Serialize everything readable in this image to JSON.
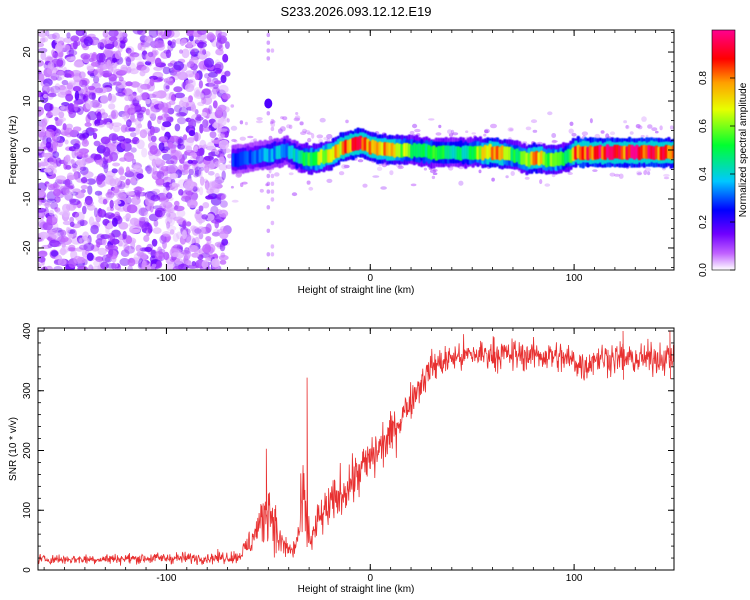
{
  "page": {
    "title": "S233.2026.093.12.12.E19"
  },
  "chart_data": [
    {
      "type": "heatmap",
      "title": "S233.2026.093.12.12.E19",
      "xlabel": "Height of straight line (km)",
      "ylabel": "Frequency (Hz)",
      "xlim": [
        -163,
        149
      ],
      "ylim": [
        -24.5,
        24.5
      ],
      "x_ticks": [
        -100,
        0,
        100
      ],
      "x_tick_labels": [
        "-100",
        "0",
        "100"
      ],
      "y_ticks": [
        -20,
        -10,
        0,
        10,
        20
      ],
      "y_tick_labels": [
        "-20",
        "-10",
        "0",
        "10",
        "20"
      ],
      "colorbar": {
        "label": "Normalized spectral amplitude",
        "range": [
          0,
          1
        ],
        "ticks": [
          0.0,
          0.2,
          0.4,
          0.6,
          0.8
        ],
        "tick_labels": [
          "0.0",
          "0.2",
          "0.4",
          "0.6",
          "0.8"
        ],
        "colors": [
          "#ffffff",
          "#b000ff",
          "#3000ff",
          "#00c8ff",
          "#00ff40",
          "#e8ff00",
          "#ffa000",
          "#ff0000",
          "#ff00a0"
        ]
      },
      "noise_region_x": [
        -163,
        -70
      ],
      "ridge": {
        "x": [
          -68,
          -60,
          -50,
          -42,
          -36,
          -30,
          -25,
          -20,
          -15,
          -10,
          -5,
          0,
          10,
          20,
          30,
          40,
          50,
          60,
          70,
          76,
          80,
          85,
          90,
          96,
          100,
          110,
          120,
          130,
          140,
          149
        ],
        "freq_hz": [
          -2,
          -1.5,
          -1,
          0,
          -1.5,
          -2,
          -1.5,
          -1,
          0.5,
          1,
          1.5,
          0.5,
          0,
          0,
          -0.5,
          -0.5,
          -0.5,
          -0.5,
          -1,
          -2,
          -1.5,
          -2,
          -2,
          -1.5,
          -0.5,
          -0.5,
          -0.5,
          -0.5,
          -0.5,
          -0.5
        ],
        "amplitude": [
          0.3,
          0.3,
          0.35,
          0.35,
          0.4,
          0.55,
          0.6,
          0.65,
          0.75,
          0.8,
          0.85,
          0.7,
          0.75,
          0.5,
          0.5,
          0.45,
          0.5,
          0.85,
          0.5,
          0.6,
          0.85,
          0.55,
          0.6,
          0.5,
          0.85,
          0.9,
          0.85,
          0.9,
          0.85,
          0.8
        ]
      }
    },
    {
      "type": "line",
      "title": "",
      "xlabel": "Height of straight line (km)",
      "ylabel": "SNR (10 * v/v)",
      "xlim": [
        -163,
        149
      ],
      "ylim": [
        0,
        405
      ],
      "x_ticks": [
        -100,
        0,
        100
      ],
      "x_tick_labels": [
        "-100",
        "0",
        "100"
      ],
      "y_ticks": [
        0,
        100,
        200,
        300,
        400
      ],
      "y_tick_labels": [
        "0",
        "100",
        "200",
        "300",
        "400"
      ],
      "line_color": "#e83030",
      "series": [
        {
          "name": "SNR",
          "x": [
            -163,
            -140,
            -120,
            -100,
            -80,
            -65,
            -60,
            -55,
            -52,
            -50,
            -47,
            -45,
            -42,
            -38,
            -35,
            -33,
            -31,
            -29,
            -25,
            -20,
            -15,
            -10,
            -5,
            0,
            5,
            10,
            15,
            20,
            25,
            30,
            40,
            50,
            60,
            70,
            80,
            90,
            100,
            105,
            110,
            120,
            130,
            140,
            149
          ],
          "mean": [
            18,
            18,
            19,
            20,
            20,
            22,
            40,
            70,
            90,
            110,
            80,
            50,
            40,
            30,
            60,
            120,
            70,
            50,
            85,
            105,
            125,
            145,
            165,
            185,
            205,
            225,
            255,
            285,
            315,
            340,
            355,
            360,
            362,
            360,
            360,
            358,
            350,
            340,
            355,
            355,
            352,
            355,
            355
          ],
          "noise": [
            7,
            7,
            7,
            8,
            8,
            9,
            18,
            30,
            40,
            45,
            35,
            25,
            20,
            15,
            25,
            60,
            35,
            25,
            30,
            32,
            34,
            36,
            36,
            36,
            34,
            30,
            28,
            25,
            25,
            22,
            22,
            22,
            22,
            22,
            22,
            22,
            22,
            25,
            22,
            22,
            22,
            22,
            22
          ]
        }
      ],
      "spikes": [
        {
          "x": -51,
          "y": 203
        },
        {
          "x": -31,
          "y": 322
        },
        {
          "x": 124,
          "y": 400
        },
        {
          "x": 147,
          "y": 400
        }
      ]
    }
  ]
}
